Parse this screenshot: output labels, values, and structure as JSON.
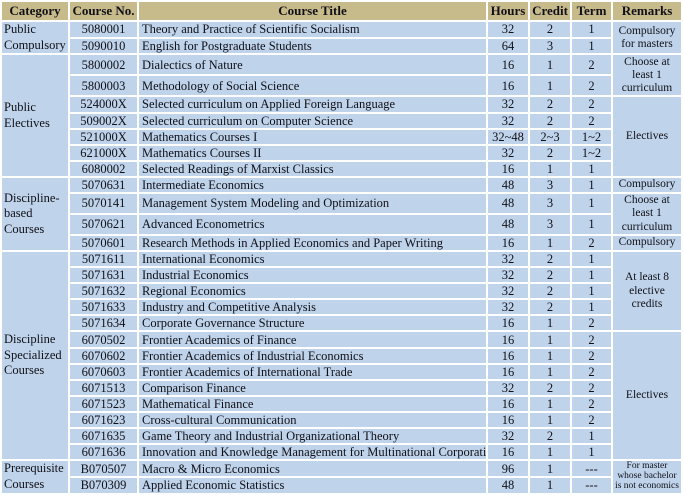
{
  "table": {
    "colors": {
      "header_bg": "#c8bb8b",
      "cell_bg": "#bfd3ea",
      "grid": "#ffffff",
      "text": "#101018"
    },
    "headers": [
      "Category",
      "Course No.",
      "Course Title",
      "Hours",
      "Credit",
      "Term",
      "Remarks"
    ],
    "categories": [
      {
        "label": "Public Compulsory",
        "span": 2
      },
      {
        "label": "Public Electives",
        "span": 7
      },
      {
        "label": "Discipline-based Courses",
        "span": 4
      },
      {
        "label": "Discipline Specialized Courses",
        "span": 13
      },
      {
        "label": "Prerequisite Courses",
        "span": 2
      }
    ],
    "remarks": [
      {
        "label": "Compulsory for masters",
        "span": 2,
        "small": false
      },
      {
        "label": "Choose at least 1 curriculum",
        "span": 2,
        "small": false
      },
      {
        "label": "Electives",
        "span": 5,
        "small": false
      },
      {
        "label": "Compulsory",
        "span": 1,
        "small": false
      },
      {
        "label": "Choose at least 1 curriculum",
        "span": 2,
        "small": false
      },
      {
        "label": "Compulsory",
        "span": 1,
        "small": false
      },
      {
        "label": "At least 8 elective credits",
        "span": 5,
        "small": false
      },
      {
        "label": "Electives",
        "span": 8,
        "small": false
      },
      {
        "label": "For master whose bachelor is not economics",
        "span": 2,
        "small": true
      }
    ],
    "rows": [
      {
        "no": "5080001",
        "title": "Theory and Practice of Scientific Socialism",
        "hours": "32",
        "credit": "2",
        "term": "1"
      },
      {
        "no": "5090010",
        "title": "English for Postgraduate Students",
        "hours": "64",
        "credit": "3",
        "term": "1"
      },
      {
        "no": "5800002",
        "title": "Dialectics of Nature",
        "hours": "16",
        "credit": "1",
        "term": "2"
      },
      {
        "no": "5800003",
        "title": "Methodology of Social Science",
        "hours": "16",
        "credit": "1",
        "term": "2"
      },
      {
        "no": "524000X",
        "title": "Selected curriculum on Applied Foreign Language",
        "hours": "32",
        "credit": "2",
        "term": "2"
      },
      {
        "no": "509002X",
        "title": "Selected curriculum on Computer Science",
        "hours": "32",
        "credit": "2",
        "term": "2"
      },
      {
        "no": "521000X",
        "title": "Mathematics Courses I",
        "hours": "32~48",
        "credit": "2~3",
        "term": "1~2"
      },
      {
        "no": "621000X",
        "title": "Mathematics Courses II",
        "hours": "32",
        "credit": "2",
        "term": "1~2"
      },
      {
        "no": "6080002",
        "title": "Selected Readings of Marxist Classics",
        "hours": "16",
        "credit": "1",
        "term": "1"
      },
      {
        "no": "5070631",
        "title": "Intermediate Economics",
        "hours": "48",
        "credit": "3",
        "term": "1"
      },
      {
        "no": "5070141",
        "title": "Management System Modeling and Optimization",
        "hours": "48",
        "credit": "3",
        "term": "1"
      },
      {
        "no": "5070621",
        "title": "Advanced Econometrics",
        "hours": "48",
        "credit": "3",
        "term": "1"
      },
      {
        "no": "5070601",
        "title": "Research Methods in Applied Economics and Paper Writing",
        "hours": "16",
        "credit": "1",
        "term": "2"
      },
      {
        "no": "5071611",
        "title": "International Economics",
        "hours": "32",
        "credit": "2",
        "term": "1"
      },
      {
        "no": "5071631",
        "title": "Industrial Economics",
        "hours": "32",
        "credit": "2",
        "term": "1"
      },
      {
        "no": "5071632",
        "title": "Regional Economics",
        "hours": "32",
        "credit": "2",
        "term": "1"
      },
      {
        "no": "5071633",
        "title": "Industry and Competitive Analysis",
        "hours": "32",
        "credit": "2",
        "term": "1"
      },
      {
        "no": "5071634",
        "title": "Corporate Governance Structure",
        "hours": "16",
        "credit": "1",
        "term": "2"
      },
      {
        "no": "6070502",
        "title": "Frontier Academics  of Finance",
        "hours": "16",
        "credit": "1",
        "term": "2"
      },
      {
        "no": "6070602",
        "title": "Frontier Academics  of Industrial Economics",
        "hours": "16",
        "credit": "1",
        "term": "2"
      },
      {
        "no": "6070603",
        "title": "Frontier Academics  of International Trade",
        "hours": "16",
        "credit": "1",
        "term": "2"
      },
      {
        "no": "6071513",
        "title": "Comparison Finance",
        "hours": "32",
        "credit": "2",
        "term": "2"
      },
      {
        "no": "6071523",
        "title": "Mathematical Finance",
        "hours": "16",
        "credit": "1",
        "term": "2"
      },
      {
        "no": "6071623",
        "title": "Cross-cultural Communication",
        "hours": "16",
        "credit": "1",
        "term": "2"
      },
      {
        "no": "6071635",
        "title": "Game Theory and Industrial Organizational Theory",
        "hours": "32",
        "credit": "2",
        "term": "1"
      },
      {
        "no": "6071636",
        "title": "Innovation and Knowledge Management for Multinational Corporation",
        "hours": "16",
        "credit": "1",
        "term": "1"
      },
      {
        "no": "B070507",
        "title": "Macro & Micro Economics",
        "hours": "96",
        "credit": "1",
        "term": "---"
      },
      {
        "no": "B070309",
        "title": "Applied Economic Statistics",
        "hours": "48",
        "credit": "1",
        "term": "---"
      }
    ]
  }
}
